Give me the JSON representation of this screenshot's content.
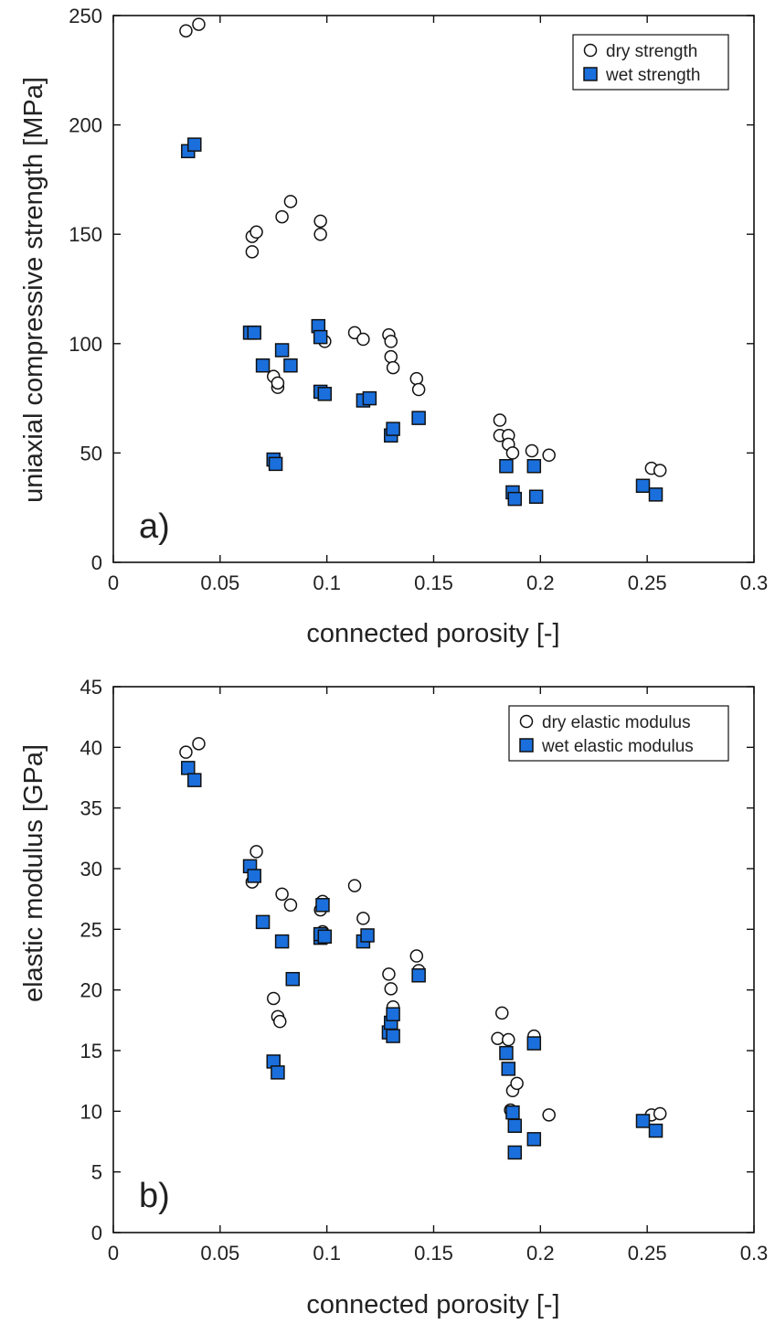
{
  "chart_data": [
    {
      "type": "scatter",
      "panel_label": "a)",
      "xlabel": "connected porosity [-]",
      "ylabel": "uniaxial compressive strength [MPa]",
      "xlim": [
        0,
        0.3
      ],
      "ylim": [
        0,
        250
      ],
      "xticks": [
        0,
        0.05,
        0.1,
        0.15,
        0.2,
        0.25,
        0.3
      ],
      "xtick_labels": [
        "0",
        "0.05",
        "0.1",
        "0.15",
        "0.2",
        "0.25",
        "0.3"
      ],
      "yticks": [
        0,
        50,
        100,
        150,
        200,
        250
      ],
      "ytick_labels": [
        "0",
        "50",
        "100",
        "150",
        "200",
        "250"
      ],
      "grid": false,
      "legend_position": "top-right",
      "series": [
        {
          "name": "dry strength",
          "marker": "open-circle",
          "color": "#ffffff",
          "points": [
            [
              0.034,
              243
            ],
            [
              0.04,
              246
            ],
            [
              0.065,
              142
            ],
            [
              0.065,
              149
            ],
            [
              0.067,
              151
            ],
            [
              0.075,
              85
            ],
            [
              0.077,
              80
            ],
            [
              0.077,
              82
            ],
            [
              0.079,
              158
            ],
            [
              0.083,
              165
            ],
            [
              0.097,
              156
            ],
            [
              0.097,
              150
            ],
            [
              0.099,
              101
            ],
            [
              0.113,
              105
            ],
            [
              0.117,
              102
            ],
            [
              0.129,
              104
            ],
            [
              0.13,
              101
            ],
            [
              0.13,
              94
            ],
            [
              0.131,
              89
            ],
            [
              0.142,
              84
            ],
            [
              0.143,
              79
            ],
            [
              0.181,
              65
            ],
            [
              0.181,
              58
            ],
            [
              0.185,
              58
            ],
            [
              0.185,
              54
            ],
            [
              0.187,
              50
            ],
            [
              0.196,
              51
            ],
            [
              0.204,
              49
            ],
            [
              0.252,
              43
            ],
            [
              0.256,
              42
            ]
          ]
        },
        {
          "name": "wet strength",
          "marker": "filled-square",
          "color": "#1a6fdc",
          "points": [
            [
              0.035,
              188
            ],
            [
              0.038,
              191
            ],
            [
              0.064,
              105
            ],
            [
              0.066,
              105
            ],
            [
              0.07,
              90
            ],
            [
              0.075,
              47
            ],
            [
              0.076,
              45
            ],
            [
              0.079,
              97
            ],
            [
              0.083,
              90
            ],
            [
              0.096,
              108
            ],
            [
              0.097,
              103
            ],
            [
              0.097,
              78
            ],
            [
              0.099,
              77
            ],
            [
              0.117,
              74
            ],
            [
              0.12,
              75
            ],
            [
              0.13,
              58
            ],
            [
              0.131,
              61
            ],
            [
              0.143,
              66
            ],
            [
              0.184,
              44
            ],
            [
              0.187,
              32
            ],
            [
              0.188,
              29
            ],
            [
              0.197,
              44
            ],
            [
              0.198,
              30
            ],
            [
              0.248,
              35
            ],
            [
              0.254,
              31
            ]
          ]
        }
      ]
    },
    {
      "type": "scatter",
      "panel_label": "b)",
      "xlabel": "connected porosity [-]",
      "ylabel": "elastic modulus [GPa]",
      "xlim": [
        0,
        0.3
      ],
      "ylim": [
        0,
        45
      ],
      "xticks": [
        0,
        0.05,
        0.1,
        0.15,
        0.2,
        0.25,
        0.3
      ],
      "xtick_labels": [
        "0",
        "0.05",
        "0.1",
        "0.15",
        "0.2",
        "0.25",
        "0.3"
      ],
      "yticks": [
        0,
        5,
        10,
        15,
        20,
        25,
        30,
        35,
        40,
        45
      ],
      "ytick_labels": [
        "0",
        "5",
        "10",
        "15",
        "20",
        "25",
        "30",
        "35",
        "40",
        "45"
      ],
      "grid": false,
      "legend_position": "top-right",
      "series": [
        {
          "name": "dry elastic modulus",
          "marker": "open-circle",
          "color": "#ffffff",
          "points": [
            [
              0.034,
              39.6
            ],
            [
              0.04,
              40.3
            ],
            [
              0.065,
              28.9
            ],
            [
              0.067,
              31.4
            ],
            [
              0.075,
              19.3
            ],
            [
              0.077,
              17.8
            ],
            [
              0.078,
              17.4
            ],
            [
              0.079,
              27.9
            ],
            [
              0.083,
              27.0
            ],
            [
              0.097,
              26.6
            ],
            [
              0.098,
              27.3
            ],
            [
              0.098,
              24.8
            ],
            [
              0.099,
              24.3
            ],
            [
              0.113,
              28.6
            ],
            [
              0.117,
              25.9
            ],
            [
              0.129,
              21.3
            ],
            [
              0.13,
              20.1
            ],
            [
              0.131,
              18.6
            ],
            [
              0.142,
              22.8
            ],
            [
              0.143,
              21.6
            ],
            [
              0.18,
              16.0
            ],
            [
              0.182,
              18.1
            ],
            [
              0.185,
              15.9
            ],
            [
              0.186,
              10.1
            ],
            [
              0.187,
              11.7
            ],
            [
              0.189,
              12.3
            ],
            [
              0.197,
              16.2
            ],
            [
              0.204,
              9.7
            ],
            [
              0.252,
              9.7
            ],
            [
              0.256,
              9.8
            ]
          ]
        },
        {
          "name": "wet elastic modulus",
          "marker": "filled-square",
          "color": "#1a6fdc",
          "points": [
            [
              0.035,
              38.3
            ],
            [
              0.038,
              37.3
            ],
            [
              0.064,
              30.2
            ],
            [
              0.066,
              29.4
            ],
            [
              0.07,
              25.6
            ],
            [
              0.075,
              14.1
            ],
            [
              0.077,
              13.2
            ],
            [
              0.079,
              24.0
            ],
            [
              0.084,
              20.9
            ],
            [
              0.097,
              24.3
            ],
            [
              0.097,
              24.6
            ],
            [
              0.098,
              27.0
            ],
            [
              0.099,
              24.4
            ],
            [
              0.117,
              24.0
            ],
            [
              0.119,
              24.5
            ],
            [
              0.129,
              16.5
            ],
            [
              0.13,
              17.3
            ],
            [
              0.131,
              18.0
            ],
            [
              0.131,
              16.2
            ],
            [
              0.143,
              21.2
            ],
            [
              0.184,
              14.8
            ],
            [
              0.185,
              13.5
            ],
            [
              0.187,
              9.9
            ],
            [
              0.188,
              8.8
            ],
            [
              0.188,
              6.6
            ],
            [
              0.197,
              15.6
            ],
            [
              0.197,
              7.7
            ],
            [
              0.248,
              9.2
            ],
            [
              0.254,
              8.4
            ]
          ]
        }
      ]
    }
  ]
}
